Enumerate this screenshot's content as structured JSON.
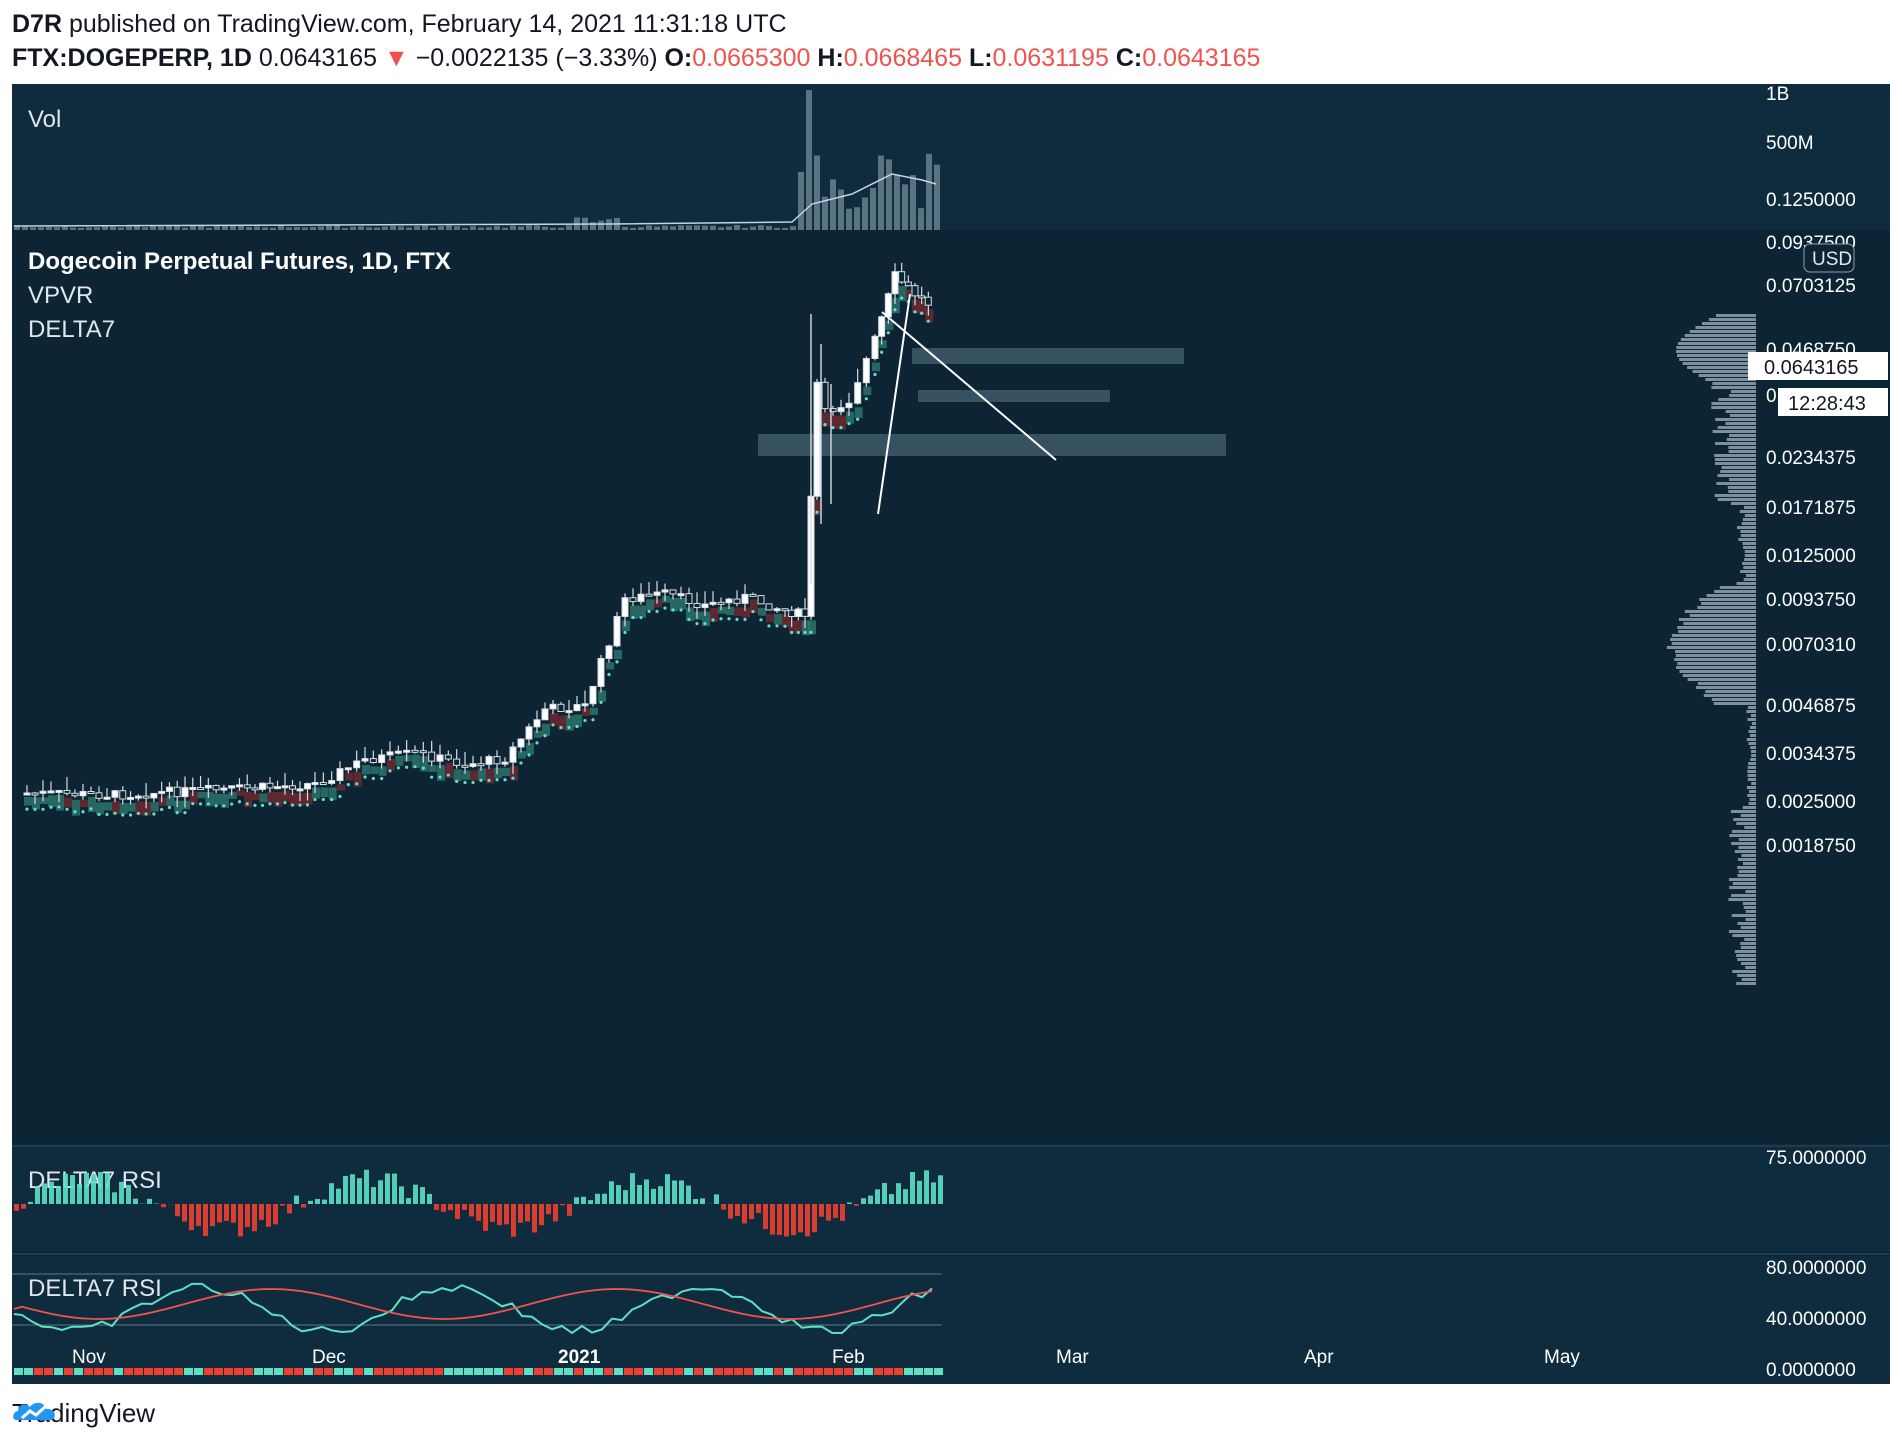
{
  "header": {
    "author": "D7R",
    "published_text": "published on TradingView.com, February 14, 2021 11:31:18 UTC",
    "symbol_line": "FTX:DOGEPERP, 1D",
    "last_price": "0.0643165",
    "change_arrow": "▼",
    "change": "−0.0022135 (−3.33%)",
    "open_label": "O:",
    "open": "0.0665300",
    "high_label": "H:",
    "high": "0.0668465",
    "low_label": "L:",
    "low": "0.0631195",
    "close_label": "C:",
    "close": "0.0643165"
  },
  "colors": {
    "bg": "#0c2434",
    "panel_bg": "#0f2c3f",
    "bull": "#5de0c6",
    "bear": "#ef3f2f",
    "text": "#dfe6ec",
    "grid_text": "#ffffff"
  },
  "panes": {
    "volume": {
      "label": "Vol",
      "axis": [
        "1B",
        "500M"
      ]
    },
    "main": {
      "title": "Dogecoin Perpetual Futures, 1D, FTX",
      "indicator1": "VPVR",
      "indicator2": "DELTA7",
      "currency_badge": "USD",
      "price_tag": "0.0643165",
      "countdown": "12:28:43",
      "axis": [
        "0.1250000",
        "0.0937500",
        "0.0703125",
        "0.0468750",
        "0.0351565",
        "0.0234375",
        "0.0171875",
        "0.0125000",
        "0.0093750",
        "0.0070310",
        "0.0046875",
        "0.0034375",
        "0.0025000",
        "0.0018750"
      ]
    },
    "rsi1": {
      "label": "DELTA7 RSI",
      "axis": [
        "75.0000000"
      ]
    },
    "rsi2": {
      "label": "DELTA7 RSI",
      "axis": [
        "80.0000000",
        "40.0000000",
        "0.0000000"
      ]
    }
  },
  "time_axis": [
    "Nov",
    "Dec",
    "2021",
    "Feb",
    "Mar",
    "Apr",
    "May"
  ],
  "footer": {
    "brand": "TradingView",
    "logo_icon": "tradingview-logo-icon"
  },
  "chart_data": {
    "type": "candlestick",
    "title": "Dogecoin Perpetual Futures, 1D, FTX",
    "y_scale": "log",
    "ylim": [
      0.0018,
      0.125
    ],
    "x": [
      "2020-10-20",
      "2020-10-27",
      "2020-11-03",
      "2020-11-10",
      "2020-11-17",
      "2020-11-24",
      "2020-12-01",
      "2020-12-08",
      "2020-12-15",
      "2020-12-22",
      "2020-12-29",
      "2021-01-01",
      "2021-01-05",
      "2021-01-10",
      "2021-01-15",
      "2021-01-20",
      "2021-01-25",
      "2021-01-28",
      "2021-01-29",
      "2021-02-01",
      "2021-02-04",
      "2021-02-07",
      "2021-02-10",
      "2021-02-14"
    ],
    "series": [
      {
        "name": "close",
        "values": [
          0.00265,
          0.00262,
          0.00268,
          0.00274,
          0.00282,
          0.0033,
          0.00345,
          0.0032,
          0.00333,
          0.0046,
          0.0047,
          0.0095,
          0.0098,
          0.0091,
          0.0096,
          0.0088,
          0.0085,
          0.039,
          0.032,
          0.035,
          0.052,
          0.079,
          0.07,
          0.0643
        ]
      }
    ],
    "vpvr_note": "",
    "rsi_levels": [
      80,
      40,
      0
    ]
  }
}
